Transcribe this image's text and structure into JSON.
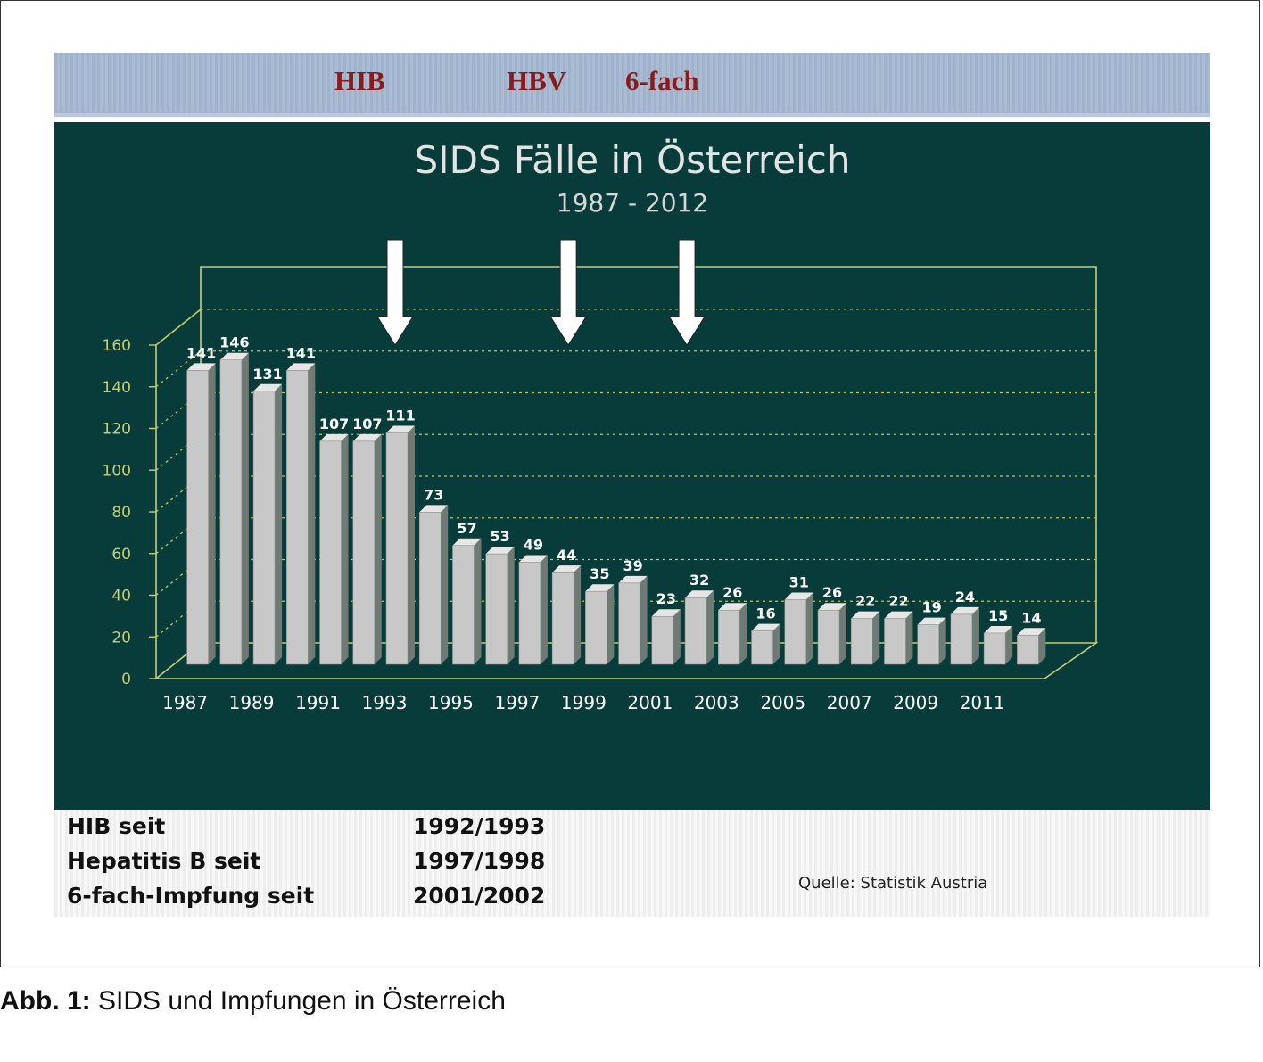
{
  "banner": {
    "labels": [
      "HIB",
      "HBV",
      "6-fach"
    ],
    "color": "#8b1a1a"
  },
  "chart_data": {
    "type": "bar",
    "title": "SIDS Fälle in Österreich",
    "subtitle": "1987 - 2012",
    "categories": [
      "1987",
      "1988",
      "1989",
      "1990",
      "1991",
      "1992",
      "1993",
      "1994",
      "1995",
      "1996",
      "1997",
      "1998",
      "1999",
      "2000",
      "2001",
      "2002",
      "2003",
      "2004",
      "2005",
      "2006",
      "2007",
      "2008",
      "2009",
      "2010",
      "2011",
      "2012"
    ],
    "values": [
      141,
      146,
      131,
      141,
      107,
      107,
      111,
      73,
      57,
      53,
      49,
      44,
      35,
      39,
      23,
      32,
      26,
      16,
      31,
      26,
      22,
      22,
      19,
      24,
      15,
      14
    ],
    "x_tick_labels": [
      "1987",
      "1989",
      "1991",
      "1993",
      "1995",
      "1997",
      "1999",
      "2001",
      "2003",
      "2005",
      "2007",
      "2009",
      "2011"
    ],
    "y_ticks": [
      0,
      20,
      40,
      60,
      80,
      100,
      120,
      140,
      160
    ],
    "ylim": [
      0,
      160
    ],
    "grid": "dashed horizontal",
    "legend": "none",
    "annotations": [
      {
        "type": "arrow",
        "label": "HIB",
        "x": "1993"
      },
      {
        "type": "arrow",
        "label": "HBV",
        "x": "1998"
      },
      {
        "type": "arrow",
        "label": "6-fach",
        "x": "2002"
      }
    ],
    "colors": {
      "background": "#073c3a",
      "bar": "#c8c8c8",
      "axis": "#c4cf78",
      "grid": "#b9c860",
      "text": "#ffffff"
    }
  },
  "legend_table": {
    "rows": [
      {
        "label": "HIB seit",
        "value": "1992/1993"
      },
      {
        "label": "Hepatitis B seit",
        "value": "1997/1998"
      },
      {
        "label": "6-fach-Impfung seit",
        "value": "2001/2002"
      }
    ],
    "source": "Quelle: Statistik Austria"
  },
  "caption": {
    "prefix": "Abb. 1:",
    "text": " SIDS und Impfungen in Österreich"
  }
}
